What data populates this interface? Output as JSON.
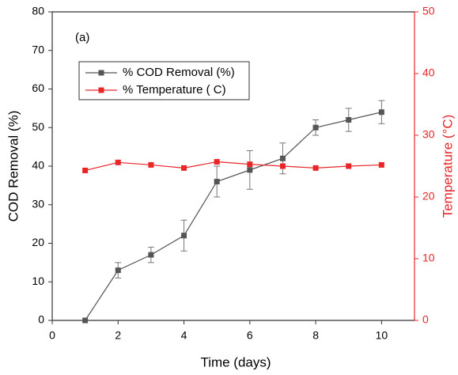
{
  "chart_data": {
    "type": "line",
    "annotation": "(a)",
    "xlabel": "Time (days)",
    "ylabel": "COD Removal (%)",
    "y2label": "Temperature (°C)",
    "x": [
      1,
      2,
      3,
      4,
      5,
      6,
      7,
      8,
      9,
      10
    ],
    "series": [
      {
        "name": "% COD Removal (%)",
        "color": "#555555",
        "axis": "y",
        "values": [
          0,
          13,
          17,
          22,
          36,
          39,
          42,
          50,
          52,
          54
        ],
        "errors": [
          0,
          2,
          2,
          4,
          4,
          5,
          4,
          2,
          3,
          3
        ]
      },
      {
        "name": "% Temperature ( C)",
        "color": "#e8262a",
        "axis": "y2",
        "values": [
          24.3,
          25.6,
          25.2,
          24.7,
          25.7,
          25.3,
          25.0,
          24.7,
          25.0,
          25.2
        ]
      }
    ],
    "xlim": [
      0,
      11
    ],
    "xticks": [
      0,
      2,
      4,
      6,
      8,
      10
    ],
    "ylim": [
      0,
      80
    ],
    "yticks": [
      0,
      10,
      20,
      30,
      40,
      50,
      60,
      70,
      80
    ],
    "y2lim": [
      0,
      50
    ],
    "y2ticks": [
      0,
      10,
      20,
      30,
      40,
      50
    ],
    "y2color": "#e8262a",
    "grid": false
  }
}
